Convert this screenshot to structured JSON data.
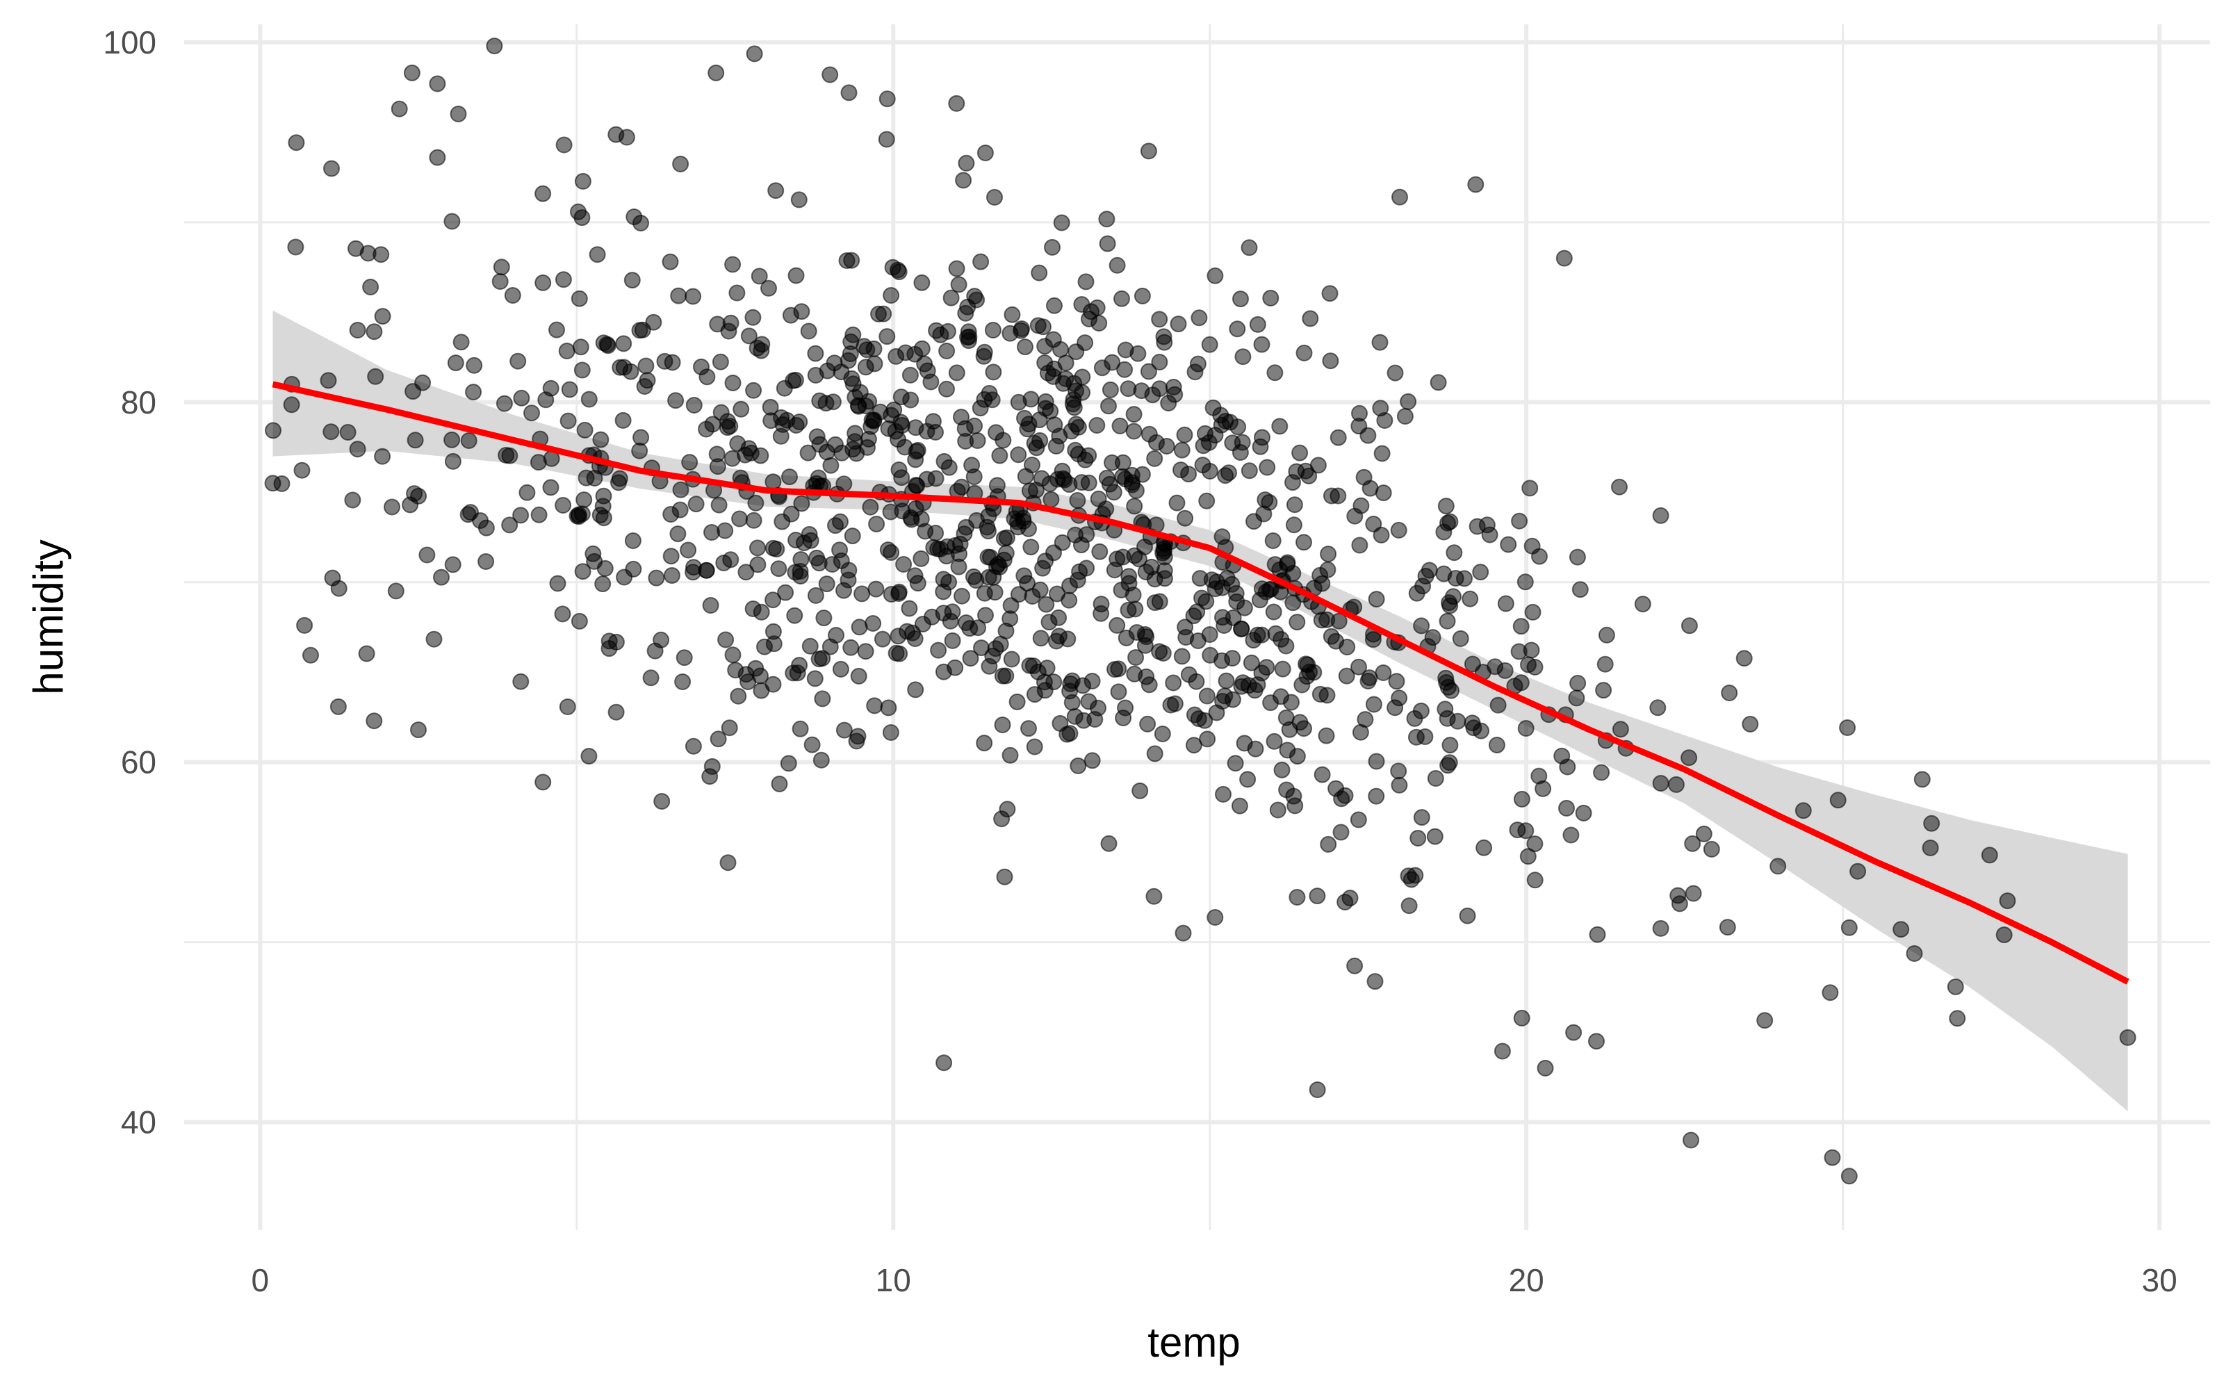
{
  "chart_data": {
    "type": "scatter",
    "title": "",
    "xlabel": "temp",
    "ylabel": "humidity",
    "xlim": [
      -1.2,
      30.8
    ],
    "ylim": [
      34,
      101
    ],
    "x_ticks": [
      0,
      10,
      20,
      30
    ],
    "y_ticks": [
      40,
      60,
      80,
      100
    ],
    "x_tick_labels": [
      "0",
      "10",
      "20",
      "30"
    ],
    "y_tick_labels": [
      "40",
      "60",
      "80",
      "100"
    ],
    "grid": true,
    "legend": "none",
    "colors": {
      "points": "#000000",
      "smooth_line": "#ff0000",
      "confidence_band": "#d9d9d9",
      "grid": "#ebebeb"
    },
    "point_alpha": 0.5,
    "generated_points": {
      "count": 1200,
      "x_mean": 12.2,
      "x_sd": 5.0,
      "y_residual_sd": 7.5,
      "x_min": 0.2,
      "x_max": 29.4
    },
    "smooth_curve": [
      [
        0.2,
        81.0
      ],
      [
        2,
        79.6
      ],
      [
        4,
        77.9
      ],
      [
        6,
        76.2
      ],
      [
        8,
        75.1
      ],
      [
        10,
        74.8
      ],
      [
        12,
        74.4
      ],
      [
        13.5,
        73.3
      ],
      [
        15,
        71.9
      ],
      [
        16.5,
        69.4
      ],
      [
        18,
        66.8
      ],
      [
        19.5,
        64.2
      ],
      [
        21,
        61.8
      ],
      [
        22.5,
        59.6
      ],
      [
        24,
        57.0
      ],
      [
        25.5,
        54.5
      ],
      [
        27,
        52.2
      ],
      [
        28.3,
        50.0
      ],
      [
        29.5,
        47.8
      ]
    ],
    "confidence_band": {
      "x": [
        0.2,
        2,
        4,
        6,
        8,
        10,
        12,
        13.5,
        15,
        16.5,
        18,
        19.5,
        21,
        22.5,
        24,
        25.5,
        27,
        28.3,
        29.5
      ],
      "upper": [
        85.1,
        81.8,
        79.3,
        77.2,
        76.0,
        75.6,
        75.3,
        74.3,
        72.9,
        70.5,
        68.1,
        65.5,
        63.3,
        61.5,
        59.7,
        58.2,
        56.8,
        55.8,
        54.9
      ],
      "lower": [
        77.0,
        77.3,
        76.6,
        75.2,
        74.2,
        74.0,
        73.5,
        72.3,
        70.9,
        68.3,
        65.5,
        62.9,
        60.3,
        57.7,
        54.3,
        50.8,
        47.5,
        44.2,
        40.6
      ]
    },
    "highlighted_points": [
      {
        "x": 0.2,
        "y": 75.5
      },
      {
        "x": 0.5,
        "y": 81.0
      },
      {
        "x": 0.7,
        "y": 67.6
      },
      {
        "x": 2.4,
        "y": 98.3
      },
      {
        "x": 2.8,
        "y": 97.7
      },
      {
        "x": 3.7,
        "y": 99.8
      },
      {
        "x": 2.2,
        "y": 96.3
      },
      {
        "x": 2.8,
        "y": 93.6
      },
      {
        "x": 7.2,
        "y": 98.3
      },
      {
        "x": 9.0,
        "y": 98.2
      },
      {
        "x": 9.3,
        "y": 97.2
      },
      {
        "x": 11.0,
        "y": 96.6
      },
      {
        "x": 19.2,
        "y": 92.1
      },
      {
        "x": 22.6,
        "y": 39.0
      },
      {
        "x": 25.1,
        "y": 37.0
      },
      {
        "x": 29.5,
        "y": 44.7
      },
      {
        "x": 20.3,
        "y": 43.0
      },
      {
        "x": 16.7,
        "y": 41.8
      },
      {
        "x": 10.8,
        "y": 43.3
      },
      {
        "x": 27.6,
        "y": 52.3
      },
      {
        "x": 26.4,
        "y": 56.6
      },
      {
        "x": 24.8,
        "y": 47.2
      },
      {
        "x": 20.6,
        "y": 88.0
      },
      {
        "x": 18.0,
        "y": 91.4
      },
      {
        "x": 1.8,
        "y": 62.3
      },
      {
        "x": 2.5,
        "y": 61.8
      },
      {
        "x": 4.8,
        "y": 94.3
      }
    ]
  }
}
